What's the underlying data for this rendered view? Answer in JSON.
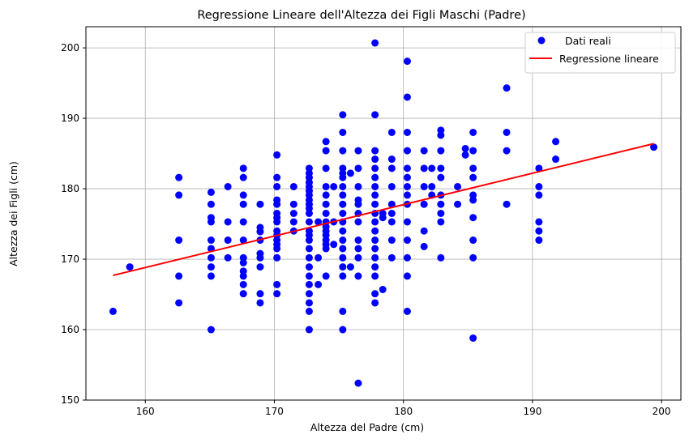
{
  "chart_data": {
    "type": "scatter",
    "title": "Regressione Lineare dell'Altezza dei Figli Maschi (Padre)",
    "xlabel": "Altezza del Padre (cm)",
    "ylabel": "Altezza dei Figli (cm)",
    "xlim": [
      155.4,
      201.5
    ],
    "ylim": [
      150,
      203
    ],
    "xticks": [
      160,
      170,
      180,
      190,
      200
    ],
    "yticks": [
      150,
      160,
      170,
      180,
      190,
      200
    ],
    "grid": true,
    "legend_position": "top-right",
    "colors": {
      "points": "#0000ff",
      "line": "#ff0000"
    },
    "series": [
      {
        "name": "Dati reali",
        "kind": "scatter",
        "points": [
          [
            157.5,
            162.6
          ],
          [
            158.8,
            168.9
          ],
          [
            162.6,
            181.6
          ],
          [
            162.6,
            179.1
          ],
          [
            162.6,
            172.7
          ],
          [
            162.6,
            167.6
          ],
          [
            162.6,
            163.8
          ],
          [
            165.1,
            179.5
          ],
          [
            165.1,
            177.8
          ],
          [
            165.1,
            175.9
          ],
          [
            165.1,
            175.3
          ],
          [
            165.1,
            172.7
          ],
          [
            165.1,
            171.5
          ],
          [
            165.1,
            170.2
          ],
          [
            165.1,
            168.9
          ],
          [
            165.1,
            167.6
          ],
          [
            165.1,
            160.0
          ],
          [
            166.4,
            180.3
          ],
          [
            166.4,
            175.3
          ],
          [
            166.4,
            172.7
          ],
          [
            166.4,
            170.2
          ],
          [
            167.6,
            182.9
          ],
          [
            167.6,
            181.6
          ],
          [
            167.6,
            179.1
          ],
          [
            167.6,
            177.8
          ],
          [
            167.6,
            175.3
          ],
          [
            167.6,
            172.7
          ],
          [
            167.6,
            170.2
          ],
          [
            167.6,
            169.5
          ],
          [
            167.6,
            168.3
          ],
          [
            167.6,
            167.6
          ],
          [
            167.6,
            166.4
          ],
          [
            167.6,
            165.1
          ],
          [
            168.9,
            177.8
          ],
          [
            168.9,
            174.5
          ],
          [
            168.9,
            173.9
          ],
          [
            168.9,
            172.7
          ],
          [
            168.9,
            170.8
          ],
          [
            168.9,
            170.2
          ],
          [
            168.9,
            168.9
          ],
          [
            168.9,
            165.1
          ],
          [
            168.9,
            163.8
          ],
          [
            170.2,
            184.8
          ],
          [
            170.2,
            181.6
          ],
          [
            170.2,
            180.3
          ],
          [
            170.2,
            178.4
          ],
          [
            170.2,
            177.8
          ],
          [
            170.2,
            176.5
          ],
          [
            170.2,
            175.9
          ],
          [
            170.2,
            175.3
          ],
          [
            170.2,
            174.0
          ],
          [
            170.2,
            173.4
          ],
          [
            170.2,
            172.7
          ],
          [
            170.2,
            172.1
          ],
          [
            170.2,
            171.5
          ],
          [
            170.2,
            170.2
          ],
          [
            170.2,
            166.4
          ],
          [
            170.2,
            165.1
          ],
          [
            171.5,
            180.3
          ],
          [
            171.5,
            177.8
          ],
          [
            171.5,
            176.5
          ],
          [
            171.5,
            175.3
          ],
          [
            171.5,
            174.0
          ],
          [
            172.7,
            182.9
          ],
          [
            172.7,
            182.2
          ],
          [
            172.7,
            181.6
          ],
          [
            172.7,
            180.9
          ],
          [
            172.7,
            180.3
          ],
          [
            172.7,
            179.7
          ],
          [
            172.7,
            179.1
          ],
          [
            172.7,
            178.4
          ],
          [
            172.7,
            177.8
          ],
          [
            172.7,
            177.2
          ],
          [
            172.7,
            176.5
          ],
          [
            172.7,
            175.3
          ],
          [
            172.7,
            174.0
          ],
          [
            172.7,
            173.4
          ],
          [
            172.7,
            172.7
          ],
          [
            172.7,
            171.5
          ],
          [
            172.7,
            170.2
          ],
          [
            172.7,
            168.9
          ],
          [
            172.7,
            167.6
          ],
          [
            172.7,
            166.4
          ],
          [
            172.7,
            165.1
          ],
          [
            172.7,
            163.8
          ],
          [
            172.7,
            162.6
          ],
          [
            172.7,
            160.0
          ],
          [
            173.4,
            175.3
          ],
          [
            173.4,
            170.2
          ],
          [
            173.4,
            166.4
          ],
          [
            174.0,
            186.7
          ],
          [
            174.0,
            185.4
          ],
          [
            174.0,
            182.9
          ],
          [
            174.0,
            180.3
          ],
          [
            174.0,
            179.1
          ],
          [
            174.0,
            177.8
          ],
          [
            174.0,
            176.5
          ],
          [
            174.0,
            175.3
          ],
          [
            174.0,
            174.6
          ],
          [
            174.0,
            174.0
          ],
          [
            174.0,
            173.4
          ],
          [
            174.0,
            172.7
          ],
          [
            174.0,
            172.1
          ],
          [
            174.0,
            171.5
          ],
          [
            174.0,
            167.6
          ],
          [
            174.6,
            180.3
          ],
          [
            174.6,
            175.3
          ],
          [
            174.6,
            172.1
          ],
          [
            175.3,
            190.5
          ],
          [
            175.3,
            188.0
          ],
          [
            175.3,
            185.4
          ],
          [
            175.3,
            182.9
          ],
          [
            175.3,
            182.2
          ],
          [
            175.3,
            181.6
          ],
          [
            175.3,
            180.3
          ],
          [
            175.3,
            179.1
          ],
          [
            175.3,
            177.8
          ],
          [
            175.3,
            176.5
          ],
          [
            175.3,
            175.3
          ],
          [
            175.3,
            174.0
          ],
          [
            175.3,
            172.7
          ],
          [
            175.3,
            171.5
          ],
          [
            175.3,
            170.2
          ],
          [
            175.3,
            168.9
          ],
          [
            175.3,
            167.6
          ],
          [
            175.3,
            162.6
          ],
          [
            175.3,
            160.0
          ],
          [
            175.9,
            182.2
          ],
          [
            175.9,
            168.9
          ],
          [
            176.5,
            185.4
          ],
          [
            176.5,
            182.9
          ],
          [
            176.5,
            180.3
          ],
          [
            176.5,
            178.4
          ],
          [
            176.5,
            177.8
          ],
          [
            176.5,
            176.5
          ],
          [
            176.5,
            175.3
          ],
          [
            176.5,
            172.7
          ],
          [
            176.5,
            171.5
          ],
          [
            176.5,
            170.2
          ],
          [
            176.5,
            167.6
          ],
          [
            176.5,
            152.4
          ],
          [
            177.8,
            200.7
          ],
          [
            177.8,
            190.5
          ],
          [
            177.8,
            185.4
          ],
          [
            177.8,
            184.2
          ],
          [
            177.8,
            182.9
          ],
          [
            177.8,
            181.6
          ],
          [
            177.8,
            180.3
          ],
          [
            177.8,
            179.1
          ],
          [
            177.8,
            177.8
          ],
          [
            177.8,
            176.5
          ],
          [
            177.8,
            175.3
          ],
          [
            177.8,
            174.0
          ],
          [
            177.8,
            172.7
          ],
          [
            177.8,
            171.5
          ],
          [
            177.8,
            170.2
          ],
          [
            177.8,
            168.9
          ],
          [
            177.8,
            167.6
          ],
          [
            177.8,
            165.1
          ],
          [
            177.8,
            163.8
          ],
          [
            178.4,
            176.5
          ],
          [
            178.4,
            175.9
          ],
          [
            178.4,
            165.7
          ],
          [
            179.1,
            188.0
          ],
          [
            179.1,
            184.2
          ],
          [
            179.1,
            182.9
          ],
          [
            179.1,
            180.3
          ],
          [
            179.1,
            177.8
          ],
          [
            179.1,
            176.5
          ],
          [
            179.1,
            175.3
          ],
          [
            179.1,
            172.7
          ],
          [
            179.1,
            170.2
          ],
          [
            180.3,
            198.1
          ],
          [
            180.3,
            193.0
          ],
          [
            180.3,
            188.0
          ],
          [
            180.3,
            185.4
          ],
          [
            180.3,
            182.9
          ],
          [
            180.3,
            181.6
          ],
          [
            180.3,
            180.3
          ],
          [
            180.3,
            179.1
          ],
          [
            180.3,
            177.8
          ],
          [
            180.3,
            175.3
          ],
          [
            180.3,
            172.7
          ],
          [
            180.3,
            170.2
          ],
          [
            180.3,
            167.6
          ],
          [
            180.3,
            162.6
          ],
          [
            181.6,
            185.4
          ],
          [
            181.6,
            182.9
          ],
          [
            181.6,
            180.3
          ],
          [
            181.6,
            177.8
          ],
          [
            181.6,
            174.0
          ],
          [
            181.6,
            171.8
          ],
          [
            182.2,
            182.9
          ],
          [
            182.2,
            180.3
          ],
          [
            182.2,
            179.1
          ],
          [
            182.9,
            188.3
          ],
          [
            182.9,
            187.6
          ],
          [
            182.9,
            185.4
          ],
          [
            182.9,
            182.9
          ],
          [
            182.9,
            181.6
          ],
          [
            182.9,
            179.1
          ],
          [
            182.9,
            177.8
          ],
          [
            182.9,
            176.5
          ],
          [
            182.9,
            175.3
          ],
          [
            182.9,
            170.2
          ],
          [
            184.2,
            180.3
          ],
          [
            184.2,
            177.8
          ],
          [
            184.8,
            185.7
          ],
          [
            184.8,
            184.8
          ],
          [
            185.4,
            188.0
          ],
          [
            185.4,
            185.4
          ],
          [
            185.4,
            182.9
          ],
          [
            185.4,
            181.6
          ],
          [
            185.4,
            179.1
          ],
          [
            185.4,
            178.4
          ],
          [
            185.4,
            175.9
          ],
          [
            185.4,
            172.7
          ],
          [
            185.4,
            170.2
          ],
          [
            185.4,
            158.8
          ],
          [
            188.0,
            194.3
          ],
          [
            188.0,
            188.0
          ],
          [
            188.0,
            185.4
          ],
          [
            188.0,
            177.8
          ],
          [
            190.5,
            182.9
          ],
          [
            190.5,
            180.3
          ],
          [
            190.5,
            179.1
          ],
          [
            190.5,
            175.3
          ],
          [
            190.5,
            174.0
          ],
          [
            190.5,
            172.7
          ],
          [
            191.8,
            186.7
          ],
          [
            191.8,
            184.2
          ],
          [
            199.4,
            185.9
          ]
        ]
      },
      {
        "name": "Regressione lineare",
        "kind": "line",
        "points": [
          [
            157.5,
            167.7
          ],
          [
            199.4,
            186.4
          ]
        ]
      }
    ]
  }
}
